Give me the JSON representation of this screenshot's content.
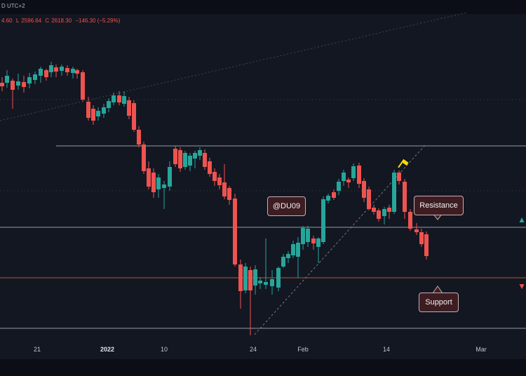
{
  "header": {
    "symbol_fragment": "D UTC+2"
  },
  "ohlc": {
    "open": "4.60",
    "high_label": "L",
    "low": "2596.64",
    "close_label": "C",
    "close": "2618.30",
    "change": "−146.30 (−5.29%)"
  },
  "annotations": {
    "watermark": "@DU09",
    "resistance": "Resistance",
    "support": "Support"
  },
  "x_axis": {
    "labels": [
      {
        "text": "21",
        "bold": false
      },
      {
        "text": "2022",
        "bold": true
      },
      {
        "text": "10",
        "bold": false
      },
      {
        "text": "24",
        "bold": false
      },
      {
        "text": "Feb",
        "bold": false
      },
      {
        "text": "14",
        "bold": false
      },
      {
        "text": "Mar",
        "bold": false
      }
    ]
  },
  "colors": {
    "background": "#131722",
    "up": "#26a69a",
    "down": "#ef5350",
    "level_line": "#b2b5be",
    "support_line": "#e6733a",
    "marker": "#f5d90a"
  },
  "icons": {
    "marker": "flag-marker-icon",
    "right_up": "arrow-up-icon",
    "right_down": "arrow-down-icon"
  }
}
